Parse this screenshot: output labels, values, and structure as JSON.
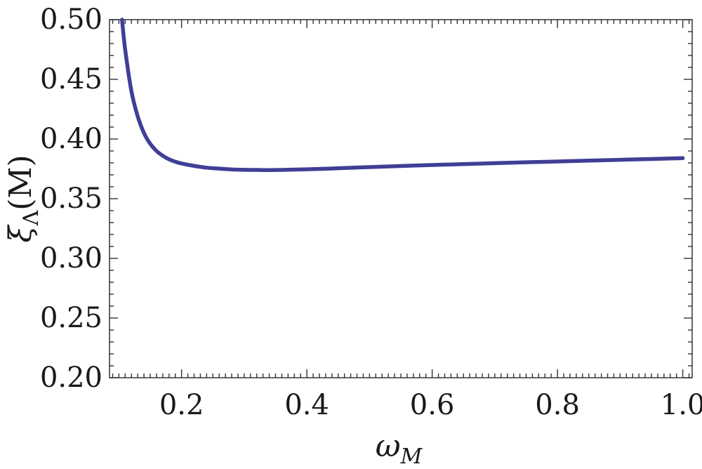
{
  "chart_data": {
    "type": "line",
    "title": "",
    "xlabel": {
      "main": "ω",
      "sub": "M"
    },
    "ylabel": {
      "main": "ξ",
      "sub": "Λ",
      "suffix": "(M)"
    },
    "xlim": [
      0.085,
      1.015
    ],
    "ylim": [
      0.2,
      0.5
    ],
    "x_ticks": [
      0.2,
      0.4,
      0.6,
      0.8,
      1.0
    ],
    "x_tick_labels": [
      "0.2",
      "0.4",
      "0.6",
      "0.8",
      "1.0"
    ],
    "y_ticks": [
      0.2,
      0.25,
      0.3,
      0.35,
      0.4,
      0.45,
      0.5
    ],
    "y_tick_labels": [
      "0.20",
      "0.25",
      "0.30",
      "0.35",
      "0.40",
      "0.45",
      "0.50"
    ],
    "grid": false,
    "series": [
      {
        "color": "#3f3f96",
        "x": [
          0.105,
          0.11,
          0.12,
          0.13,
          0.14,
          0.15,
          0.16,
          0.17,
          0.18,
          0.19,
          0.2,
          0.22,
          0.24,
          0.26,
          0.28,
          0.3,
          0.32,
          0.34,
          0.36,
          0.4,
          0.45,
          0.5,
          0.6,
          0.7,
          0.8,
          0.9,
          1.0
        ],
        "y": [
          0.5,
          0.475,
          0.44,
          0.419,
          0.405,
          0.396,
          0.39,
          0.386,
          0.383,
          0.381,
          0.3795,
          0.3775,
          0.376,
          0.3752,
          0.3745,
          0.3742,
          0.3741,
          0.374,
          0.3741,
          0.3746,
          0.3755,
          0.3765,
          0.3782,
          0.3798,
          0.3812,
          0.3826,
          0.384
        ]
      }
    ]
  }
}
